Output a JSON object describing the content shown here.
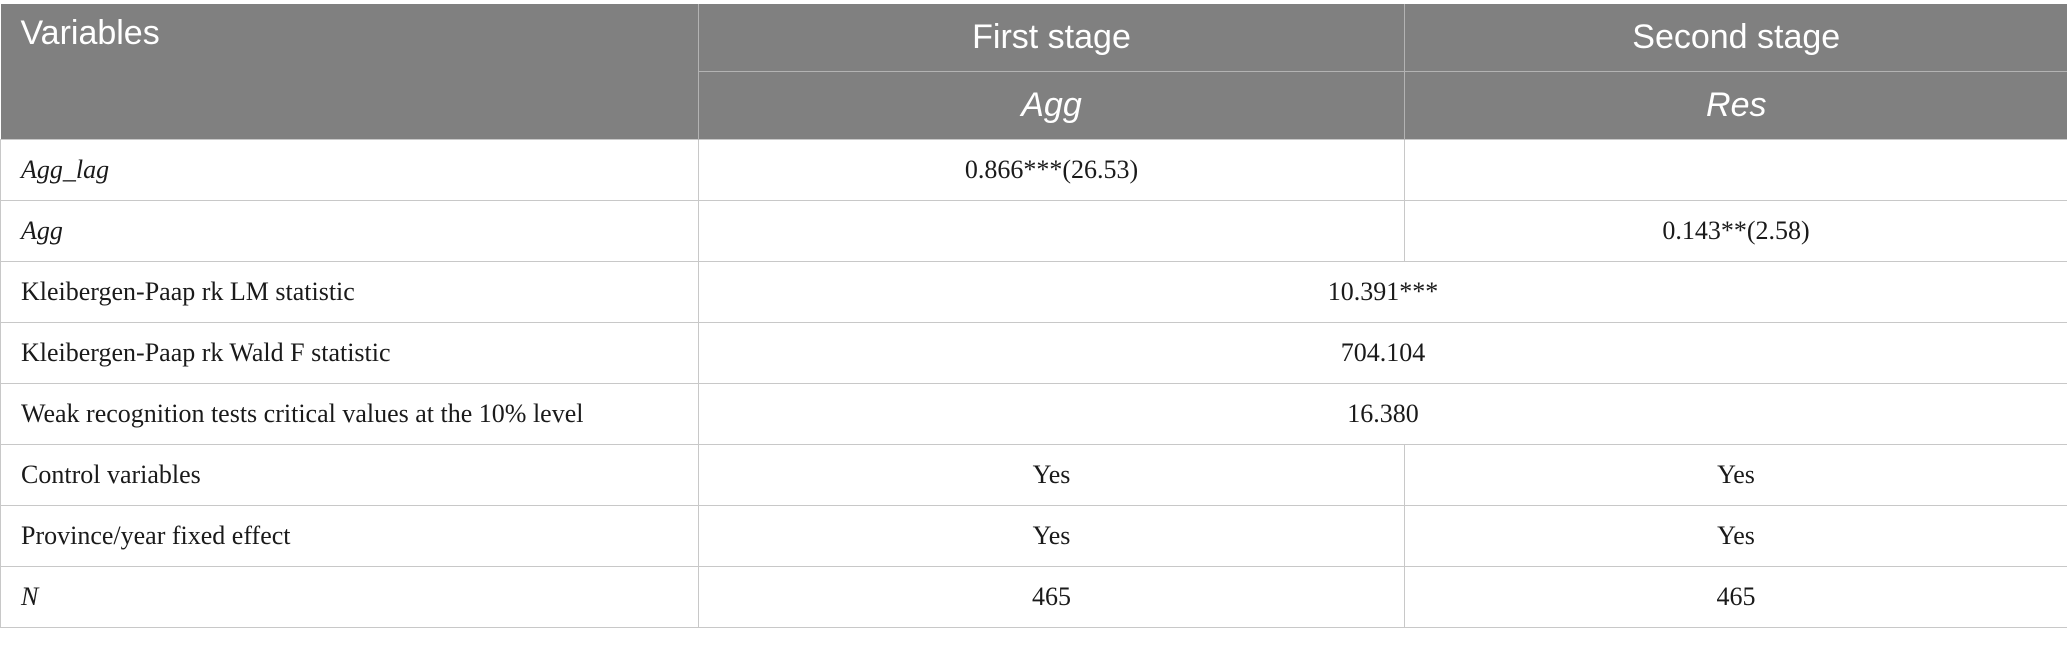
{
  "header": {
    "variables_label": "Variables",
    "first_stage_label": "First stage",
    "second_stage_label": "Second stage",
    "first_stage_dep": "Agg",
    "second_stage_dep": "Res"
  },
  "rows": {
    "agg_lag": {
      "label": "Agg_lag",
      "first": "0.866***(26.53)",
      "second": ""
    },
    "agg": {
      "label": "Agg",
      "first": "",
      "second": "0.143**(2.58)"
    },
    "kp_lm": {
      "label": "Kleibergen-Paap rk LM statistic",
      "value": "10.391***"
    },
    "kp_wald": {
      "label": "Kleibergen-Paap rk Wald F statistic",
      "value": "704.104"
    },
    "weak_test": {
      "label": "Weak recognition tests critical values at the 10% level",
      "value": "16.380"
    },
    "controls": {
      "label": "Control variables",
      "first": "Yes",
      "second": "Yes"
    },
    "fixed_effects": {
      "label": "Province/year fixed effect",
      "first": "Yes",
      "second": "Yes"
    },
    "n": {
      "label": "N",
      "first": "465",
      "second": "465"
    }
  }
}
